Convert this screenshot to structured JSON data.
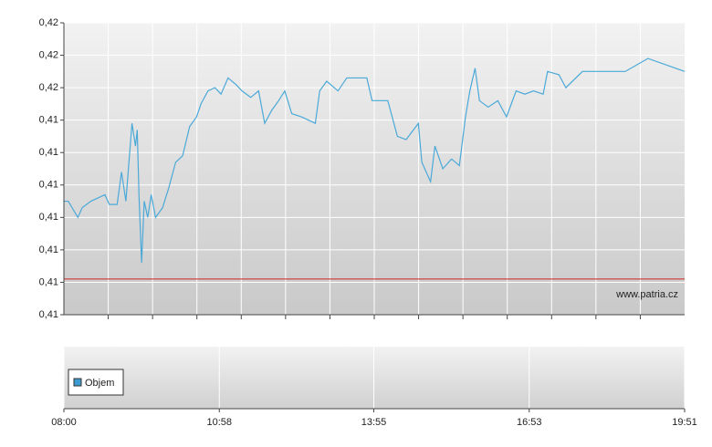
{
  "chart_data": [
    {
      "type": "line",
      "watermark": "www.patria.cz",
      "x": [
        "08:00",
        "08:05",
        "08:16",
        "08:21",
        "08:31",
        "08:47",
        "08:52",
        "09:01",
        "09:06",
        "09:11",
        "09:18",
        "09:22",
        "09:24",
        "09:26",
        "09:29",
        "09:32",
        "09:36",
        "09:40",
        "09:45",
        "09:53",
        "10:00",
        "10:08",
        "10:16",
        "10:24",
        "10:32",
        "10:37",
        "10:45",
        "10:53",
        "11:00",
        "11:08",
        "11:17",
        "11:24",
        "11:34",
        "11:43",
        "11:50",
        "11:58",
        "12:06",
        "12:13",
        "12:21",
        "12:32",
        "12:48",
        "12:53",
        "13:01",
        "13:14",
        "13:24",
        "13:40",
        "13:47",
        "13:53",
        "14:01",
        "14:11",
        "14:22",
        "14:32",
        "14:46",
        "14:50",
        "15:00",
        "15:05",
        "15:14",
        "15:24",
        "15:33",
        "15:40",
        "15:45",
        "15:51",
        "15:56",
        "16:06",
        "16:17",
        "16:27",
        "16:38",
        "16:48",
        "16:58",
        "17:09",
        "17:14",
        "17:27",
        "17:35",
        "17:54",
        "18:43",
        "19:09",
        "19:30",
        "19:51"
      ],
      "series": [
        {
          "color": "#4ba9d8",
          "values": [
            0.412,
            0.412,
            0.4115,
            0.4118,
            0.412,
            0.4122,
            0.4119,
            0.4119,
            0.4129,
            0.412,
            0.4144,
            0.4137,
            0.4142,
            0.4122,
            0.4101,
            0.412,
            0.4115,
            0.4122,
            0.4115,
            0.4118,
            0.4124,
            0.4132,
            0.4134,
            0.4143,
            0.4146,
            0.415,
            0.4154,
            0.4155,
            0.4153,
            0.4158,
            0.4156,
            0.4154,
            0.4152,
            0.4154,
            0.4144,
            0.4148,
            0.4151,
            0.4154,
            0.4147,
            0.4146,
            0.4144,
            0.4154,
            0.4157,
            0.4154,
            0.4158,
            0.4158,
            0.4158,
            0.4151,
            0.4151,
            0.4151,
            0.414,
            0.4139,
            0.4144,
            0.4132,
            0.4126,
            0.4137,
            0.413,
            0.4133,
            0.4131,
            0.4146,
            0.4154,
            0.4161,
            0.4151,
            0.4149,
            0.4151,
            0.4146,
            0.4154,
            0.4153,
            0.4154,
            0.4153,
            0.416,
            0.4159,
            0.4155,
            0.416,
            0.416,
            0.4164,
            0.4162,
            0.416
          ]
        }
      ],
      "reference_line": {
        "value": 0.4096,
        "color": "#cc2222"
      },
      "xlim": [
        "08:00",
        "19:51"
      ],
      "xticks": [
        "08:00",
        "10:58",
        "13:55",
        "16:53",
        "19:51"
      ],
      "ylim": [
        0.4085,
        0.4175
      ],
      "yticks": [
        {
          "value": 0.4085,
          "label": "0,41"
        },
        {
          "value": 0.4095,
          "label": "0,41"
        },
        {
          "value": 0.4105,
          "label": "0,41"
        },
        {
          "value": 0.4115,
          "label": "0,41"
        },
        {
          "value": 0.4125,
          "label": "0,41"
        },
        {
          "value": 0.4135,
          "label": "0,41"
        },
        {
          "value": 0.4145,
          "label": "0,41"
        },
        {
          "value": 0.4155,
          "label": "0,42"
        },
        {
          "value": 0.4165,
          "label": "0,42"
        },
        {
          "value": 0.4175,
          "label": "0,42"
        }
      ],
      "grid": true
    },
    {
      "type": "bar",
      "series": [
        {
          "name": "Objem",
          "color": "#3d9bd1"
        }
      ],
      "legend": "bottom-left"
    }
  ]
}
